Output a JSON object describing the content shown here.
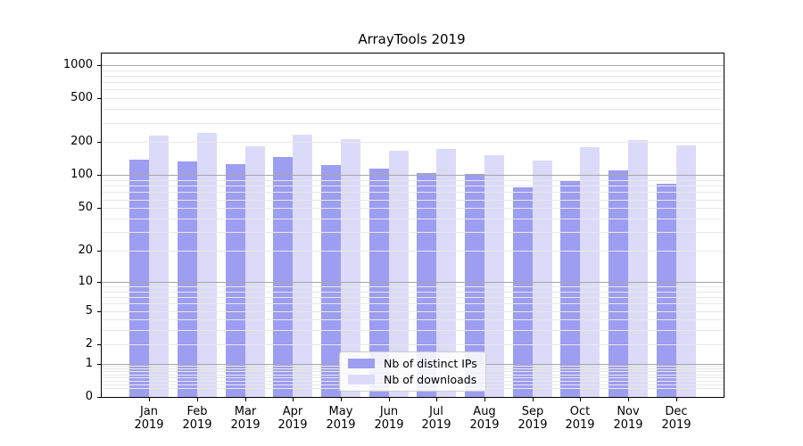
{
  "chart_data": {
    "type": "bar",
    "title": "ArrayTools 2019",
    "x": [
      "Jan",
      "Feb",
      "Mar",
      "Apr",
      "May",
      "Jun",
      "Jul",
      "Aug",
      "Sep",
      "Oct",
      "Nov",
      "Dec"
    ],
    "x_year": "2019",
    "series": [
      {
        "name": "Nb of distinct IPs",
        "color": "#9d9df1",
        "values": [
          140,
          133,
          126,
          148,
          124,
          114,
          105,
          103,
          78,
          89,
          110,
          83
        ]
      },
      {
        "name": "Nb of downloads",
        "color": "#dbdbf9",
        "values": [
          228,
          242,
          184,
          236,
          214,
          168,
          175,
          152,
          137,
          180,
          210,
          186
        ]
      }
    ],
    "yscale": "log(value+1)",
    "ylim": [
      0,
      1270
    ],
    "y_ticks": [
      0,
      1,
      2,
      5,
      10,
      20,
      50,
      100,
      200,
      500,
      1000
    ],
    "y_major_gridlines": [
      1,
      10,
      100,
      1000
    ],
    "y_minor_gridlines": [
      0.2,
      0.3,
      0.4,
      0.5,
      0.6,
      0.7,
      0.8,
      0.9,
      2,
      3,
      4,
      5,
      6,
      7,
      8,
      9,
      20,
      30,
      40,
      50,
      60,
      70,
      80,
      90,
      200,
      300,
      400,
      500,
      600,
      700,
      800,
      900
    ],
    "grid": true,
    "legend_position": "lower center",
    "colors": {
      "major_grid": "#a6a6a6",
      "minor_grid": "#e8e8e8",
      "axis": "#000000",
      "background": "#ffffff",
      "legend_border": "#cccccc"
    }
  }
}
